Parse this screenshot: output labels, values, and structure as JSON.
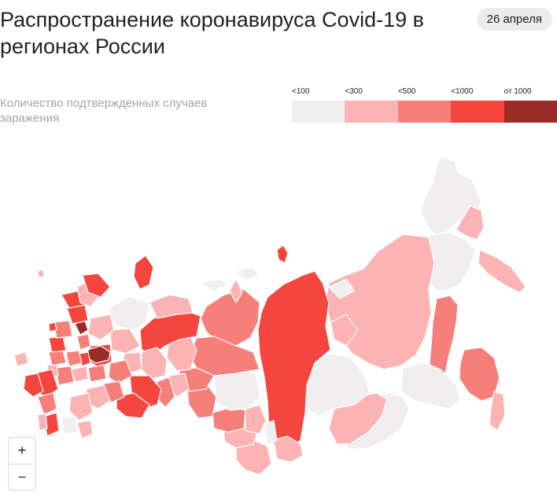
{
  "header": {
    "title": "Распространение коронавируса Covid-19 в регионах России",
    "date": "26 апреля",
    "subtitle": "Количество подтвержденных случаев заражения"
  },
  "legend": [
    {
      "label": "<100",
      "color": "#f0eeef"
    },
    {
      "label": "<300",
      "color": "#fbb3b3"
    },
    {
      "label": "<500",
      "color": "#f77f7a"
    },
    {
      "label": "<1000",
      "color": "#f4463f"
    },
    {
      "label": "от 1000",
      "color": "#9b2b27"
    }
  ],
  "zoom": {
    "in_label": "+",
    "out_label": "−"
  }
}
